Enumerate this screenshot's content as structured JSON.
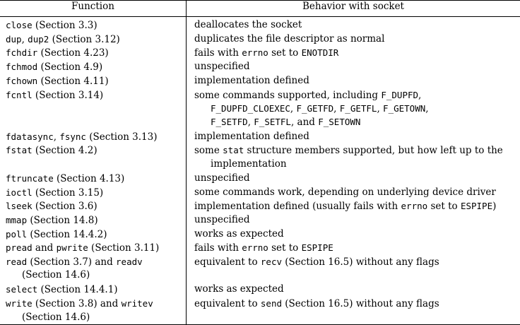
{
  "header": {
    "function": "Function",
    "behavior": "Behavior with socket"
  },
  "rows": [
    {
      "function": [
        [
          {
            "t": "close",
            "m": 1
          },
          {
            "t": " (Section 3.3)"
          }
        ]
      ],
      "behavior": [
        [
          {
            "t": "deallocates the socket"
          }
        ]
      ]
    },
    {
      "function": [
        [
          {
            "t": "dup",
            "m": 1
          },
          {
            "t": ", "
          },
          {
            "t": "dup2",
            "m": 1
          },
          {
            "t": " (Section 3.12)"
          }
        ]
      ],
      "behavior": [
        [
          {
            "t": "duplicates the file descriptor as normal"
          }
        ]
      ]
    },
    {
      "function": [
        [
          {
            "t": "fchdir",
            "m": 1
          },
          {
            "t": " (Section 4.23)"
          }
        ]
      ],
      "behavior": [
        [
          {
            "t": "fails with "
          },
          {
            "t": "errno",
            "m": 1
          },
          {
            "t": " set to "
          },
          {
            "t": "ENOTDIR",
            "m": 1
          }
        ]
      ]
    },
    {
      "function": [
        [
          {
            "t": "fchmod",
            "m": 1
          },
          {
            "t": " (Section 4.9)"
          }
        ]
      ],
      "behavior": [
        [
          {
            "t": "unspecified"
          }
        ]
      ]
    },
    {
      "function": [
        [
          {
            "t": "fchown",
            "m": 1
          },
          {
            "t": " (Section 4.11)"
          }
        ]
      ],
      "behavior": [
        [
          {
            "t": "implementation defined"
          }
        ]
      ]
    },
    {
      "function": [
        [
          {
            "t": "fcntl",
            "m": 1
          },
          {
            "t": " (Section 3.14)"
          }
        ]
      ],
      "behavior": [
        [
          {
            "t": "some commands supported, including "
          },
          {
            "t": "F_DUPFD",
            "m": 1
          },
          {
            "t": ","
          }
        ],
        [
          {
            "t": "F_DUPFD_CLOEXEC",
            "m": 1
          },
          {
            "t": ", "
          },
          {
            "t": "F_GETFD",
            "m": 1
          },
          {
            "t": ", "
          },
          {
            "t": "F_GETFL",
            "m": 1
          },
          {
            "t": ", "
          },
          {
            "t": "F_GETOWN",
            "m": 1
          },
          {
            "t": ","
          }
        ],
        [
          {
            "t": "F_SETFD",
            "m": 1
          },
          {
            "t": ", "
          },
          {
            "t": "F_SETFL",
            "m": 1
          },
          {
            "t": ", and "
          },
          {
            "t": "F_SETOWN",
            "m": 1
          }
        ]
      ]
    },
    {
      "function": [
        [
          {
            "t": "fdatasync",
            "m": 1
          },
          {
            "t": ", "
          },
          {
            "t": "fsync",
            "m": 1
          },
          {
            "t": " (Section 3.13)"
          }
        ]
      ],
      "behavior": [
        [
          {
            "t": "implementation defined"
          }
        ]
      ]
    },
    {
      "function": [
        [
          {
            "t": "fstat",
            "m": 1
          },
          {
            "t": " (Section 4.2)"
          }
        ]
      ],
      "behavior": [
        [
          {
            "t": "some "
          },
          {
            "t": "stat",
            "m": 1
          },
          {
            "t": " structure members supported, but how left up to the"
          }
        ],
        [
          {
            "t": "implementation"
          }
        ]
      ]
    },
    {
      "function": [
        [
          {
            "t": "ftruncate",
            "m": 1
          },
          {
            "t": " (Section 4.13)"
          }
        ]
      ],
      "behavior": [
        [
          {
            "t": "unspecified"
          }
        ]
      ]
    },
    {
      "function": [
        [
          {
            "t": "ioctl",
            "m": 1
          },
          {
            "t": " (Section 3.15)"
          }
        ]
      ],
      "behavior": [
        [
          {
            "t": "some commands work, depending on underlying device driver"
          }
        ]
      ]
    },
    {
      "function": [
        [
          {
            "t": "lseek",
            "m": 1
          },
          {
            "t": " (Section 3.6)"
          }
        ]
      ],
      "behavior": [
        [
          {
            "t": "implementation defined (usually fails with "
          },
          {
            "t": "errno",
            "m": 1
          },
          {
            "t": " set to "
          },
          {
            "t": "ESPIPE",
            "m": 1
          },
          {
            "t": ")"
          }
        ]
      ]
    },
    {
      "function": [
        [
          {
            "t": "mmap",
            "m": 1
          },
          {
            "t": " (Section 14.8)"
          }
        ]
      ],
      "behavior": [
        [
          {
            "t": "unspecified"
          }
        ]
      ]
    },
    {
      "function": [
        [
          {
            "t": "poll",
            "m": 1
          },
          {
            "t": " (Section 14.4.2)"
          }
        ]
      ],
      "behavior": [
        [
          {
            "t": "works as expected"
          }
        ]
      ]
    },
    {
      "function": [
        [
          {
            "t": "pread",
            "m": 1
          },
          {
            "t": " and "
          },
          {
            "t": "pwrite",
            "m": 1
          },
          {
            "t": " (Section 3.11)"
          }
        ]
      ],
      "behavior": [
        [
          {
            "t": "fails with "
          },
          {
            "t": "errno",
            "m": 1
          },
          {
            "t": " set to "
          },
          {
            "t": "ESPIPE",
            "m": 1
          }
        ]
      ]
    },
    {
      "function": [
        [
          {
            "t": "read",
            "m": 1
          },
          {
            "t": " (Section 3.7) and "
          },
          {
            "t": "readv",
            "m": 1
          }
        ],
        [
          {
            "t": "(Section 14.6)"
          }
        ]
      ],
      "behavior": [
        [
          {
            "t": "equivalent to "
          },
          {
            "t": "recv",
            "m": 1
          },
          {
            "t": " (Section 16.5) without any flags"
          }
        ]
      ]
    },
    {
      "function": [
        [
          {
            "t": "select",
            "m": 1
          },
          {
            "t": " (Section 14.4.1)"
          }
        ]
      ],
      "behavior": [
        [
          {
            "t": "works as expected"
          }
        ]
      ]
    },
    {
      "function": [
        [
          {
            "t": "write",
            "m": 1
          },
          {
            "t": " (Section 3.8) and "
          },
          {
            "t": "writev",
            "m": 1
          }
        ],
        [
          {
            "t": "(Section 14.6)"
          }
        ]
      ],
      "behavior": [
        [
          {
            "t": "equivalent to "
          },
          {
            "t": "send",
            "m": 1
          },
          {
            "t": " (Section 16.5) without any flags"
          }
        ]
      ]
    }
  ]
}
